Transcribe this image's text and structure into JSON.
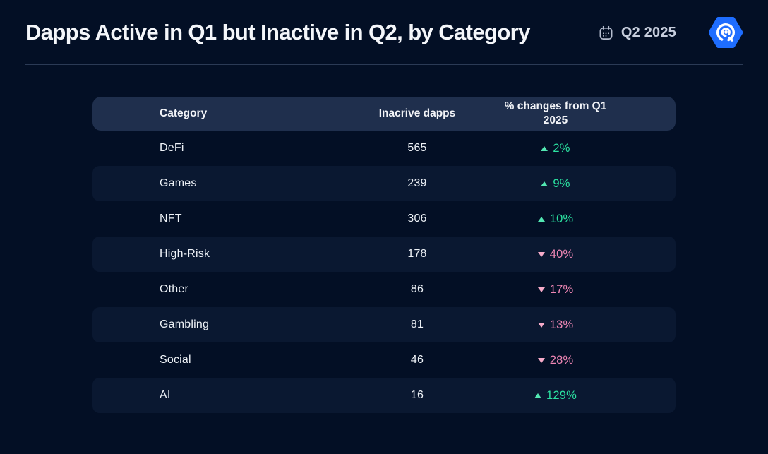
{
  "header": {
    "title": "Dapps Active in Q1 but Inactive in Q2, by Category",
    "period_label": "Q2 2025"
  },
  "table": {
    "columns": [
      "Category",
      "Inacrive dapps",
      "% changes from Q1 2025"
    ]
  },
  "icons": {
    "calendar": "calendar-icon",
    "logo": "dappradar-logo"
  },
  "colors": {
    "background": "#030f25",
    "header_row_bg": "#1f2f4d",
    "alt_row_bg": "#0a1831",
    "divider": "#2b3a55",
    "title_text": "#f4f6fa",
    "period_text": "#c7cedd",
    "cell_text": "#eef2f7",
    "positive": "#2be2a1",
    "positive_arrow": "#53e7b2",
    "negative": "#ee86b4",
    "negative_arrow": "#f6abc9",
    "logo_blue": "#1e6dff"
  },
  "chart_data": {
    "type": "table",
    "title": "Dapps Active in Q1 but Inactive in Q2, by Category",
    "period": "Q2 2025",
    "columns": [
      "Category",
      "Inacrive dapps",
      "% changes from Q1 2025"
    ],
    "rows": [
      {
        "category": "DeFi",
        "inactive_dapps": 565,
        "change_pct": 2,
        "direction": "up"
      },
      {
        "category": "Games",
        "inactive_dapps": 239,
        "change_pct": 9,
        "direction": "up"
      },
      {
        "category": "NFT",
        "inactive_dapps": 306,
        "change_pct": 10,
        "direction": "up"
      },
      {
        "category": "High-Risk",
        "inactive_dapps": 178,
        "change_pct": 40,
        "direction": "down"
      },
      {
        "category": "Other",
        "inactive_dapps": 86,
        "change_pct": 17,
        "direction": "down"
      },
      {
        "category": "Gambling",
        "inactive_dapps": 81,
        "change_pct": 13,
        "direction": "down"
      },
      {
        "category": "Social",
        "inactive_dapps": 46,
        "change_pct": 28,
        "direction": "down"
      },
      {
        "category": "AI",
        "inactive_dapps": 16,
        "change_pct": 129,
        "direction": "up"
      }
    ]
  }
}
